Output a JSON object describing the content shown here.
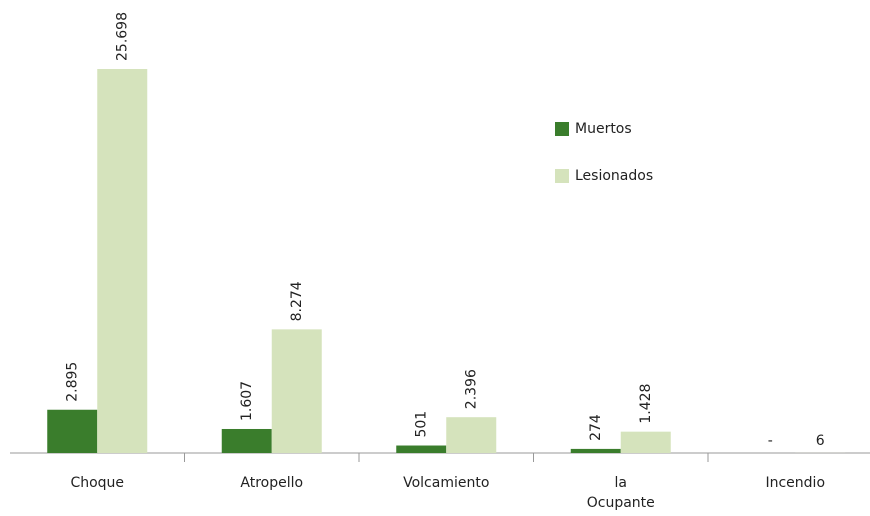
{
  "chart_data": {
    "type": "bar",
    "categories": [
      "Choque",
      "Atropello",
      "Volcamiento",
      [
        "la",
        "Ocupante"
      ],
      "Incendio"
    ],
    "series": [
      {
        "name": "Muertos",
        "color": "#3a7d2c",
        "values": [
          2895,
          1607,
          501,
          274,
          0
        ],
        "value_labels": [
          "2.895",
          "1.607",
          "501",
          "274",
          "-"
        ]
      },
      {
        "name": "Lesionados",
        "color": "#d5e3bc",
        "values": [
          25698,
          8274,
          2396,
          1428,
          6
        ],
        "value_labels": [
          "25.698",
          "8.274",
          "2.396",
          "1.428",
          "6"
        ]
      }
    ]
  }
}
